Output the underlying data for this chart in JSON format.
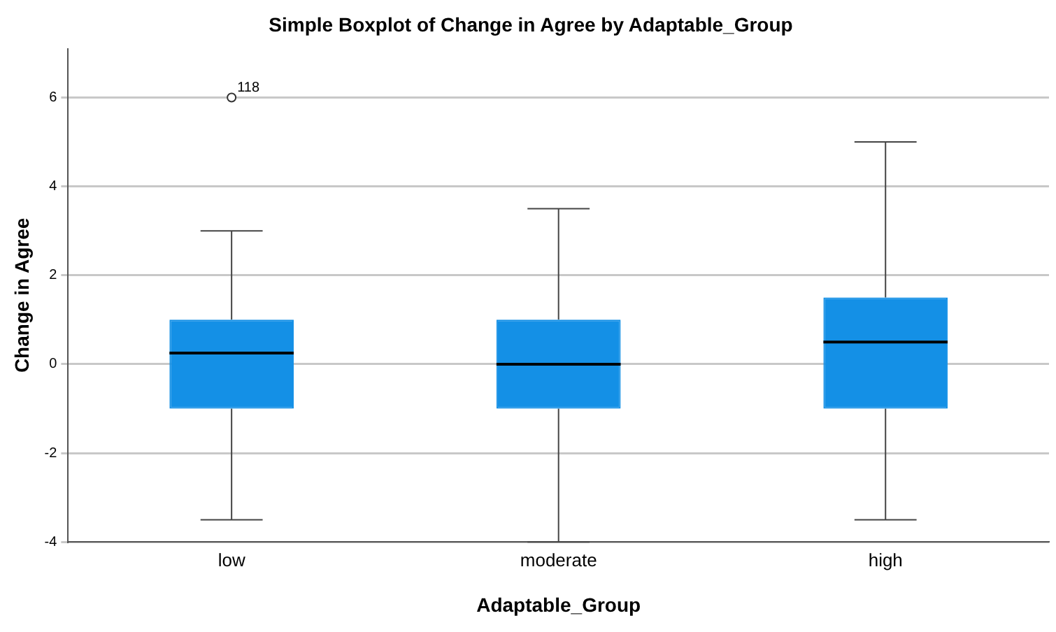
{
  "chart_data": {
    "type": "box",
    "title": "Simple Boxplot of Change in Agree by Adaptable_Group",
    "xlabel": "Adaptable_Group",
    "ylabel": "Change in Agree",
    "categories": [
      "low",
      "moderate",
      "high"
    ],
    "color": "#1490e6",
    "boxes": [
      {
        "low": -3.5,
        "q1": -1,
        "median": 0.25,
        "q3": 1,
        "high": 3,
        "outliers": [
          6
        ]
      },
      {
        "low": -4,
        "q1": -1,
        "median": 0,
        "q3": 1,
        "high": 3.5
      },
      {
        "low": -3.5,
        "q1": -1,
        "median": 0.5,
        "q3": 1.5,
        "high": 5
      }
    ],
    "ylim": [
      -4,
      7.1
    ],
    "yticks": [
      -4,
      -2,
      0,
      2,
      4,
      6
    ],
    "grid": "y",
    "legend": false,
    "annotations": [
      "118"
    ]
  }
}
